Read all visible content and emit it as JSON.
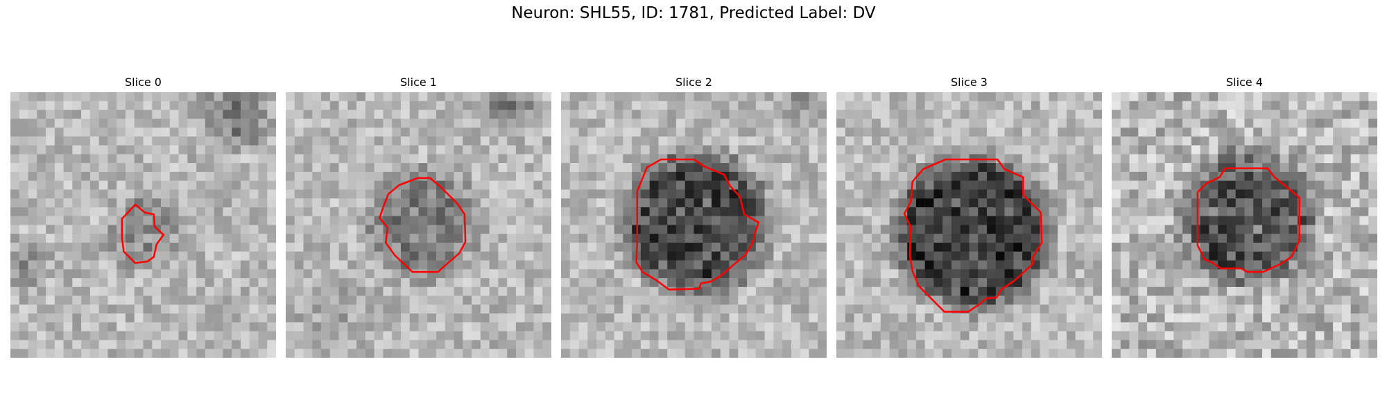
{
  "figure": {
    "title": "Neuron: SHL55, ID: 1781, Predicted Label: DV"
  },
  "panels": [
    {
      "title": "Slice 0"
    },
    {
      "title": "Slice 1"
    },
    {
      "title": "Slice 2"
    },
    {
      "title": "Slice 3"
    },
    {
      "title": "Slice 4"
    }
  ],
  "colors": {
    "contour": "#ff0000",
    "background": "#ffffff"
  }
}
